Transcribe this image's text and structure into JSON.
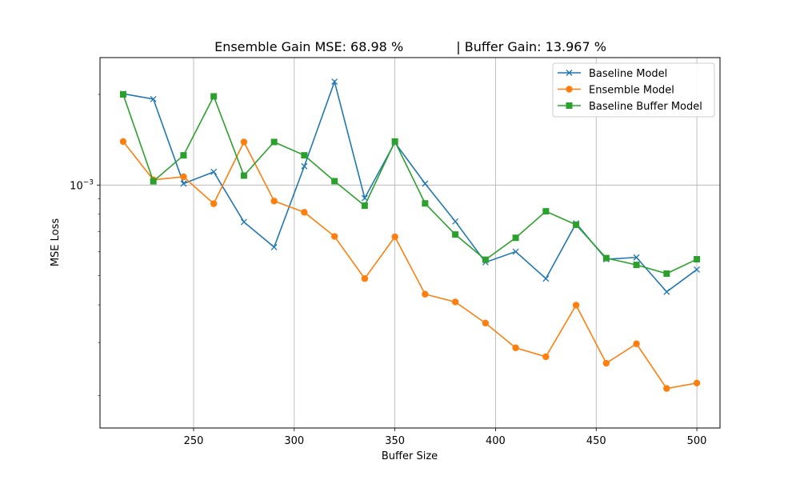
{
  "chart_data": {
    "type": "line",
    "title": "Ensemble Gain MSE: 68.98 %             | Buffer Gain: 13.967 %",
    "xlabel": "Buffer Size",
    "ylabel": "MSE Loss",
    "xlim": [
      203.5,
      511.5
    ],
    "ylim": [
      0.000156,
      0.00265
    ],
    "yscale": "log",
    "grid": true,
    "legend_position": "top-right",
    "x_ticks": [
      250,
      300,
      350,
      400,
      450,
      500
    ],
    "y_ticks": [
      {
        "value": 0.001,
        "base": "10",
        "exponent": "−3"
      }
    ],
    "x": [
      215,
      230,
      245,
      260,
      275,
      290,
      305,
      320,
      335,
      350,
      365,
      380,
      395,
      410,
      425,
      440,
      455,
      470,
      485,
      500
    ],
    "series": [
      {
        "name": "Baseline Model",
        "color": "#1f77b4",
        "marker": "x",
        "values": [
          0.00201,
          0.00193,
          0.001011,
          0.001106,
          0.000754,
          0.000622,
          0.001155,
          0.002205,
          0.000905,
          0.001384,
          0.001011,
          0.000757,
          0.000554,
          0.000601,
          0.000489,
          0.000746,
          0.000567,
          0.000575,
          0.000442,
          0.000524
        ]
      },
      {
        "name": "Ensemble Model",
        "color": "#ff7f0e",
        "marker": "circle",
        "values": [
          0.001395,
          0.001041,
          0.001065,
          0.000867,
          0.00139,
          0.000885,
          0.000812,
          0.000675,
          0.000489,
          0.000673,
          0.000434,
          0.000409,
          0.000348,
          0.000288,
          0.000269,
          0.000399,
          0.000256,
          0.000297,
          0.000211,
          0.00022
        ]
      },
      {
        "name": "Baseline Buffer Model",
        "color": "#2ca02c",
        "marker": "square",
        "values": [
          0.002,
          0.001029,
          0.001255,
          0.00197,
          0.001075,
          0.00139,
          0.001255,
          0.00103,
          0.000854,
          0.001395,
          0.000869,
          0.000685,
          0.000565,
          0.000668,
          0.000818,
          0.000738,
          0.000572,
          0.000543,
          0.000508,
          0.000567
        ]
      }
    ]
  }
}
